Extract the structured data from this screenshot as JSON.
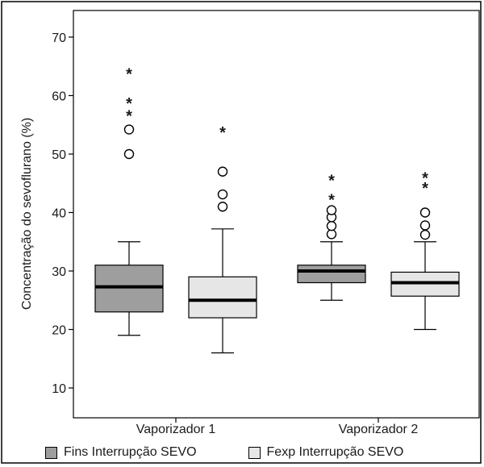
{
  "chart_data": {
    "type": "box",
    "ylabel": "Concentração do sevoflurano (%)",
    "ylim": [
      5,
      73
    ],
    "yticks": [
      10,
      20,
      30,
      40,
      50,
      60,
      70
    ],
    "categories": [
      "Vaporizador 1",
      "Vaporizador 2"
    ],
    "series": [
      {
        "name": "Fins Interrupção SEVO",
        "color": "#9e9e9e",
        "boxes": [
          {
            "category": "Vaporizador 1",
            "whisker_low": 19,
            "q1": 23,
            "median": 27.3,
            "q3": 31,
            "whisker_high": 35,
            "outliers_circle": [
              50,
              54.2
            ],
            "outliers_star": [
              56.8,
              59,
              64
            ]
          },
          {
            "category": "Vaporizador 2",
            "whisker_low": 25,
            "q1": 28,
            "median": 30,
            "q3": 31,
            "whisker_high": 35,
            "outliers_circle": [
              36.3,
              37.7,
              39.2,
              40.4
            ],
            "outliers_star": [
              42.5,
              45.8
            ]
          }
        ]
      },
      {
        "name": "Fexp Interrupção SEVO",
        "color": "#e6e6e6",
        "boxes": [
          {
            "category": "Vaporizador 1",
            "whisker_low": 16,
            "q1": 22,
            "median": 25,
            "q3": 29,
            "whisker_high": 37.2,
            "outliers_circle": [
              41,
              43.1,
              47
            ],
            "outliers_star": [
              54
            ]
          },
          {
            "category": "Vaporizador 2",
            "whisker_low": 20,
            "q1": 25.7,
            "median": 28,
            "q3": 29.8,
            "whisker_high": 35,
            "outliers_circle": [
              36.2,
              37.8,
              40
            ],
            "outliers_star": [
              44.5,
              46.2
            ]
          }
        ]
      }
    ],
    "grid": false,
    "legend_position": "bottom"
  }
}
